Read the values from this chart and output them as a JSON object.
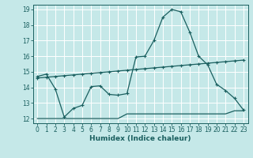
{
  "xlabel": "Humidex (Indice chaleur)",
  "bg_color": "#c5e8e8",
  "grid_color": "#ffffff",
  "line_color": "#1a5f5f",
  "xlim": [
    -0.5,
    23.5
  ],
  "ylim": [
    11.7,
    19.3
  ],
  "xticks": [
    0,
    1,
    2,
    3,
    4,
    5,
    6,
    7,
    8,
    9,
    10,
    11,
    12,
    13,
    14,
    15,
    16,
    17,
    18,
    19,
    20,
    21,
    22,
    23
  ],
  "yticks": [
    12,
    13,
    14,
    15,
    16,
    17,
    18,
    19
  ],
  "line1_x": [
    0,
    1,
    2,
    3,
    4,
    5,
    6,
    7,
    8,
    9,
    10,
    11,
    12,
    13,
    14,
    15,
    16,
    17,
    18,
    19,
    20,
    21,
    22,
    23
  ],
  "line1_y": [
    14.7,
    14.85,
    13.9,
    12.1,
    12.65,
    12.85,
    14.05,
    14.1,
    13.55,
    13.5,
    13.6,
    15.95,
    16.0,
    17.0,
    18.5,
    19.0,
    18.85,
    17.55,
    16.0,
    15.45,
    14.2,
    13.8,
    13.3,
    12.55
  ],
  "line2_x": [
    0,
    1,
    2,
    3,
    4,
    5,
    6,
    7,
    8,
    9,
    10,
    11,
    12,
    13,
    14,
    15,
    16,
    17,
    18,
    19,
    20,
    21,
    22,
    23
  ],
  "line2_y": [
    14.6,
    14.65,
    14.7,
    14.75,
    14.8,
    14.85,
    14.9,
    14.95,
    15.0,
    15.05,
    15.1,
    15.15,
    15.2,
    15.25,
    15.3,
    15.35,
    15.4,
    15.45,
    15.5,
    15.55,
    15.6,
    15.65,
    15.7,
    15.75
  ],
  "line3_x": [
    0,
    1,
    2,
    3,
    4,
    5,
    6,
    7,
    8,
    9,
    10,
    11,
    12,
    13,
    14,
    15,
    16,
    17,
    18,
    19,
    20,
    21,
    22,
    23
  ],
  "line3_y": [
    12.0,
    12.0,
    12.0,
    12.0,
    12.0,
    12.0,
    12.0,
    12.0,
    12.0,
    12.0,
    12.3,
    12.3,
    12.3,
    12.3,
    12.3,
    12.3,
    12.3,
    12.3,
    12.3,
    12.3,
    12.3,
    12.3,
    12.5,
    12.5
  ]
}
